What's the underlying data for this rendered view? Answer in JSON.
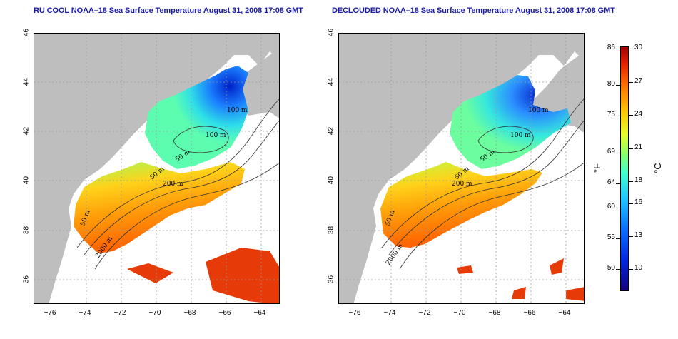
{
  "titles": {
    "left": "RU COOL NOAA–18 Sea Surface Temperature August 31, 2008 17:08 GMT",
    "right": "DECLOUDED NOAA–18 Sea Surface Temperature August 31, 2008 17:08 GMT"
  },
  "axes": {
    "y_ticks": [
      "46",
      "44",
      "42",
      "40",
      "38",
      "36"
    ],
    "x_ticks": [
      "−76",
      "−74",
      "−72",
      "−70",
      "−68",
      "−66",
      "−64"
    ]
  },
  "contours": {
    "left": [
      "100 m",
      "100 m",
      "50 m",
      "50 m",
      "200 m",
      "50 m",
      "2000 m"
    ],
    "right": [
      "100 m",
      "100 m",
      "50 m",
      "50 m",
      "200 m",
      "50 m",
      "2000 m"
    ]
  },
  "colorbar": {
    "fahrenheit_ticks": [
      "86",
      "80",
      "75",
      "69",
      "64",
      "60",
      "55",
      "50"
    ],
    "celsius_ticks": [
      "30",
      "27",
      "24",
      "21",
      "18",
      "16",
      "13",
      "10"
    ],
    "fahrenheit_unit": "°F",
    "celsius_unit": "°C",
    "colors": [
      "#15007a",
      "#0026e0",
      "#0a6dff",
      "#1fc9ff",
      "#3dffce",
      "#8aff6a",
      "#e6ff2a",
      "#ffc200",
      "#ff7400",
      "#e82200",
      "#a30000"
    ]
  },
  "colors": {
    "land": "#bebebe",
    "title": "#1a1aa6",
    "grid": "#9a9a9a"
  }
}
